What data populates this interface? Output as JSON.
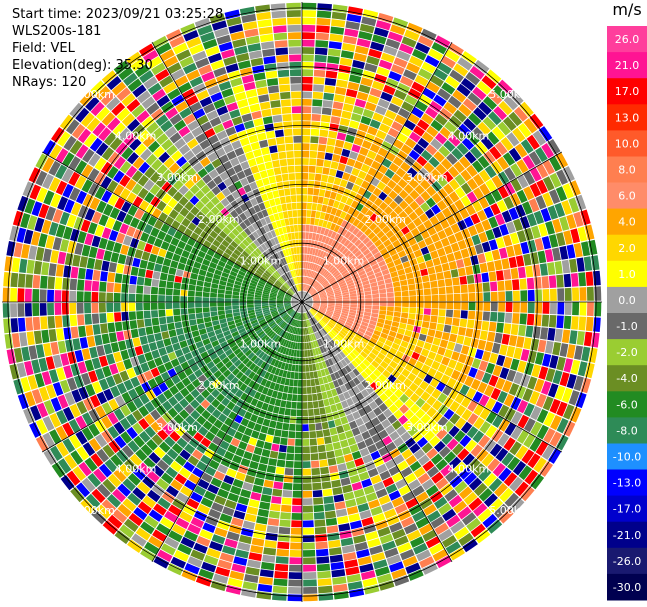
{
  "header": {
    "start_time": "Start time: 2023/09/21 03:25:28",
    "instrument": "WLS200s-181",
    "field": "Field: VEL",
    "elevation": "Elevation(deg): 35.30",
    "nrays": "NRays: 120"
  },
  "colorbar": {
    "unit": "m/s",
    "ticks": [
      "26.0",
      "21.0",
      "17.0",
      "13.0",
      "10.0",
      "8.0",
      "6.0",
      "4.0",
      "2.0",
      "1.0",
      "0.0",
      "-1.0",
      "-2.0",
      "-4.0",
      "-6.0",
      "-8.0",
      "-10.0",
      "-13.0",
      "-17.0",
      "-21.0",
      "-26.0",
      "-30.0"
    ],
    "colors": [
      "#ff3e9c",
      "#ff1493",
      "#ff0000",
      "#ff2a00",
      "#ff5a2a",
      "#ff7f50",
      "#ff8c69",
      "#ffa500",
      "#ffd700",
      "#ffff00",
      "#a0a0a0",
      "#696969",
      "#9acd32",
      "#6b8e23",
      "#228b22",
      "#2e8b57",
      "#1e90ff",
      "#0000ff",
      "#0000cd",
      "#00008b",
      "#191970",
      "#000050"
    ]
  },
  "chart_data": {
    "type": "heatmap",
    "title": "",
    "field": "VEL",
    "unit": "m/s",
    "scan": "PPI",
    "elevation_deg": 35.3,
    "n_rays": 120,
    "range_rings_km": [
      1.0,
      2.0,
      3.0,
      4.0,
      5.0
    ],
    "range_ring_labels": [
      "1.00km",
      "2.00km",
      "3.00km",
      "4.00km",
      "5.00km"
    ],
    "colorbar_range": [
      -30.0,
      26.0
    ],
    "pattern": {
      "north_east_sector": "positive velocities (orange/yellow, ~2 to 8 m/s)",
      "south_west_sector": "negative velocities (green, ~-2 to -6 m/s)",
      "outer_ranges": "noisy, multicolored (low signal)"
    }
  }
}
